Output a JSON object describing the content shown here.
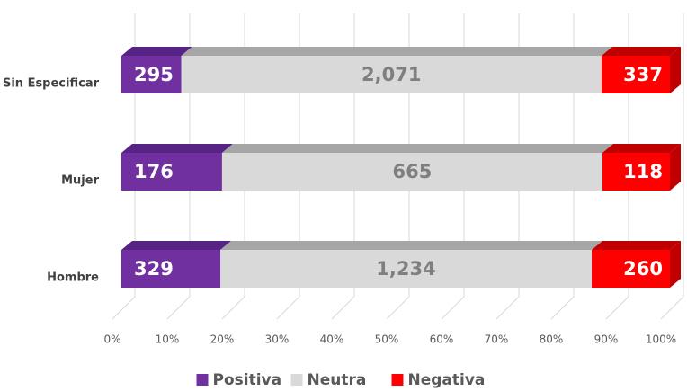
{
  "chart_data": {
    "type": "bar",
    "orientation": "horizontal",
    "stacking": "percent",
    "categories": [
      "Sin Especificar",
      "Mujer",
      "Hombre"
    ],
    "series": [
      {
        "name": "Positiva",
        "color": "#7030a0",
        "values": [
          295,
          176,
          329
        ],
        "value_labels": [
          "295",
          "176",
          "329"
        ]
      },
      {
        "name": "Neutra",
        "color": "#d9d9d9",
        "values": [
          2071,
          665,
          1234
        ],
        "value_labels": [
          "2,071",
          "665",
          "1,234"
        ]
      },
      {
        "name": "Negativa",
        "color": "#ff0000",
        "values": [
          337,
          118,
          260
        ],
        "value_labels": [
          "337",
          "118",
          "260"
        ]
      }
    ],
    "xlim": [
      0,
      100
    ],
    "xticks": [
      {
        "value": 0,
        "label": "0%"
      },
      {
        "value": 10,
        "label": "10%"
      },
      {
        "value": 20,
        "label": "20%"
      },
      {
        "value": 30,
        "label": "30%"
      },
      {
        "value": 40,
        "label": "40%"
      },
      {
        "value": 50,
        "label": "50%"
      },
      {
        "value": 60,
        "label": "60%"
      },
      {
        "value": 70,
        "label": "70%"
      },
      {
        "value": 80,
        "label": "80%"
      },
      {
        "value": 90,
        "label": "90%"
      },
      {
        "value": 100,
        "label": "100%"
      }
    ],
    "grid": true,
    "legend": "bottom"
  }
}
